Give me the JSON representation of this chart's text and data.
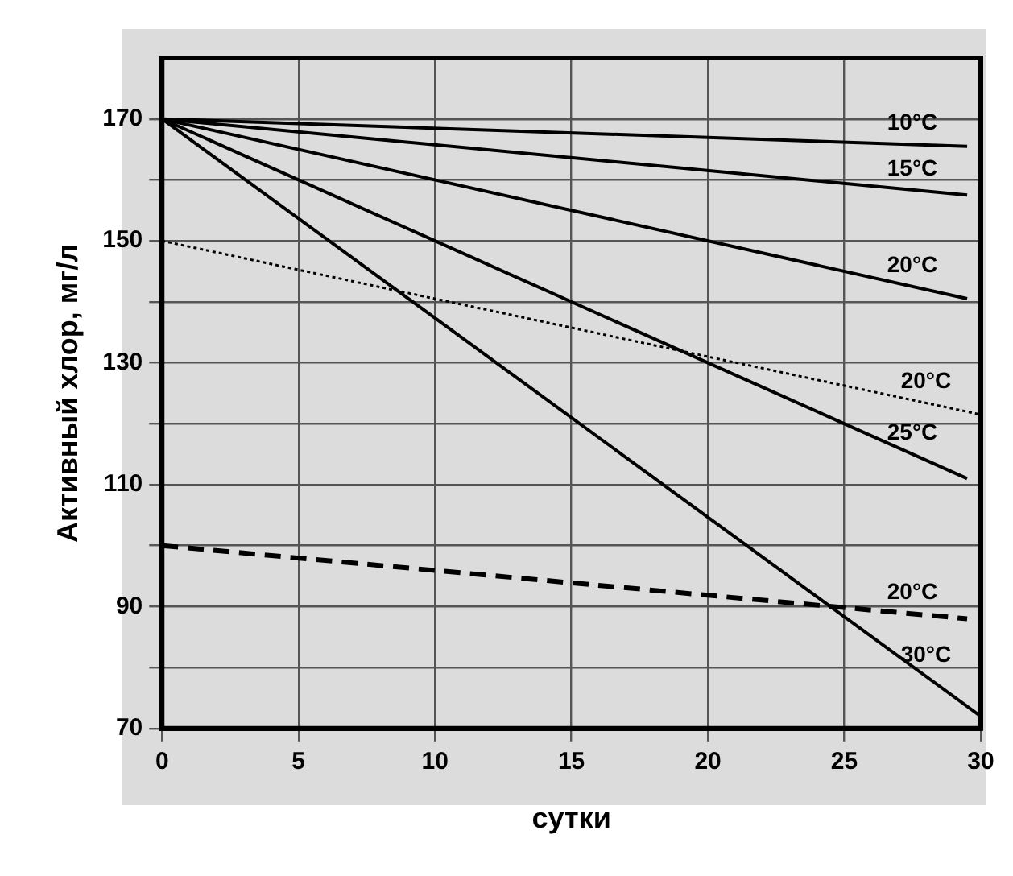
{
  "chart_data": {
    "type": "line",
    "xlabel": "сутки",
    "ylabel": "Активный хлор, мг/л",
    "xlim": [
      0,
      30
    ],
    "xticks": [
      0,
      5,
      10,
      15,
      20,
      25,
      30
    ],
    "ylim": [
      70,
      180
    ],
    "yticks": [
      70,
      {
        "value": 80,
        "label": null
      },
      90,
      {
        "value": 100,
        "label": null
      },
      110,
      {
        "value": 120,
        "label": null
      },
      130,
      {
        "value": 140,
        "label": null
      },
      150,
      {
        "value": 160,
        "label": null
      },
      170
    ],
    "grid": true,
    "legend": false,
    "marker": "none",
    "line_style": "solid",
    "series": [
      {
        "name": "10°C",
        "color": "#000000",
        "x": [
          0,
          29.5
        ],
        "values": [
          170,
          165.5
        ]
      },
      {
        "name": "15°C",
        "color": "#000000",
        "x": [
          0,
          29.5
        ],
        "values": [
          170,
          157.5
        ]
      },
      {
        "name": "20°C",
        "color": "#000000",
        "x": [
          0,
          29.5
        ],
        "values": [
          170,
          140.5
        ]
      },
      {
        "name": "20°C",
        "color": "#000000",
        "x": [
          0,
          30
        ],
        "values": [
          150,
          121.5
        ],
        "line_style": "dotted"
      },
      {
        "name": "25°C",
        "color": "#000000",
        "x": [
          0,
          29.5
        ],
        "values": [
          170,
          111
        ]
      },
      {
        "name": "30°C",
        "color": "#000000",
        "x": [
          0,
          30
        ],
        "values": [
          170,
          72
        ]
      },
      {
        "name": "20°C",
        "color": "#000000",
        "x": [
          0,
          29.5
        ],
        "values": [
          100,
          88
        ],
        "line_style": "dashed"
      }
    ]
  }
}
